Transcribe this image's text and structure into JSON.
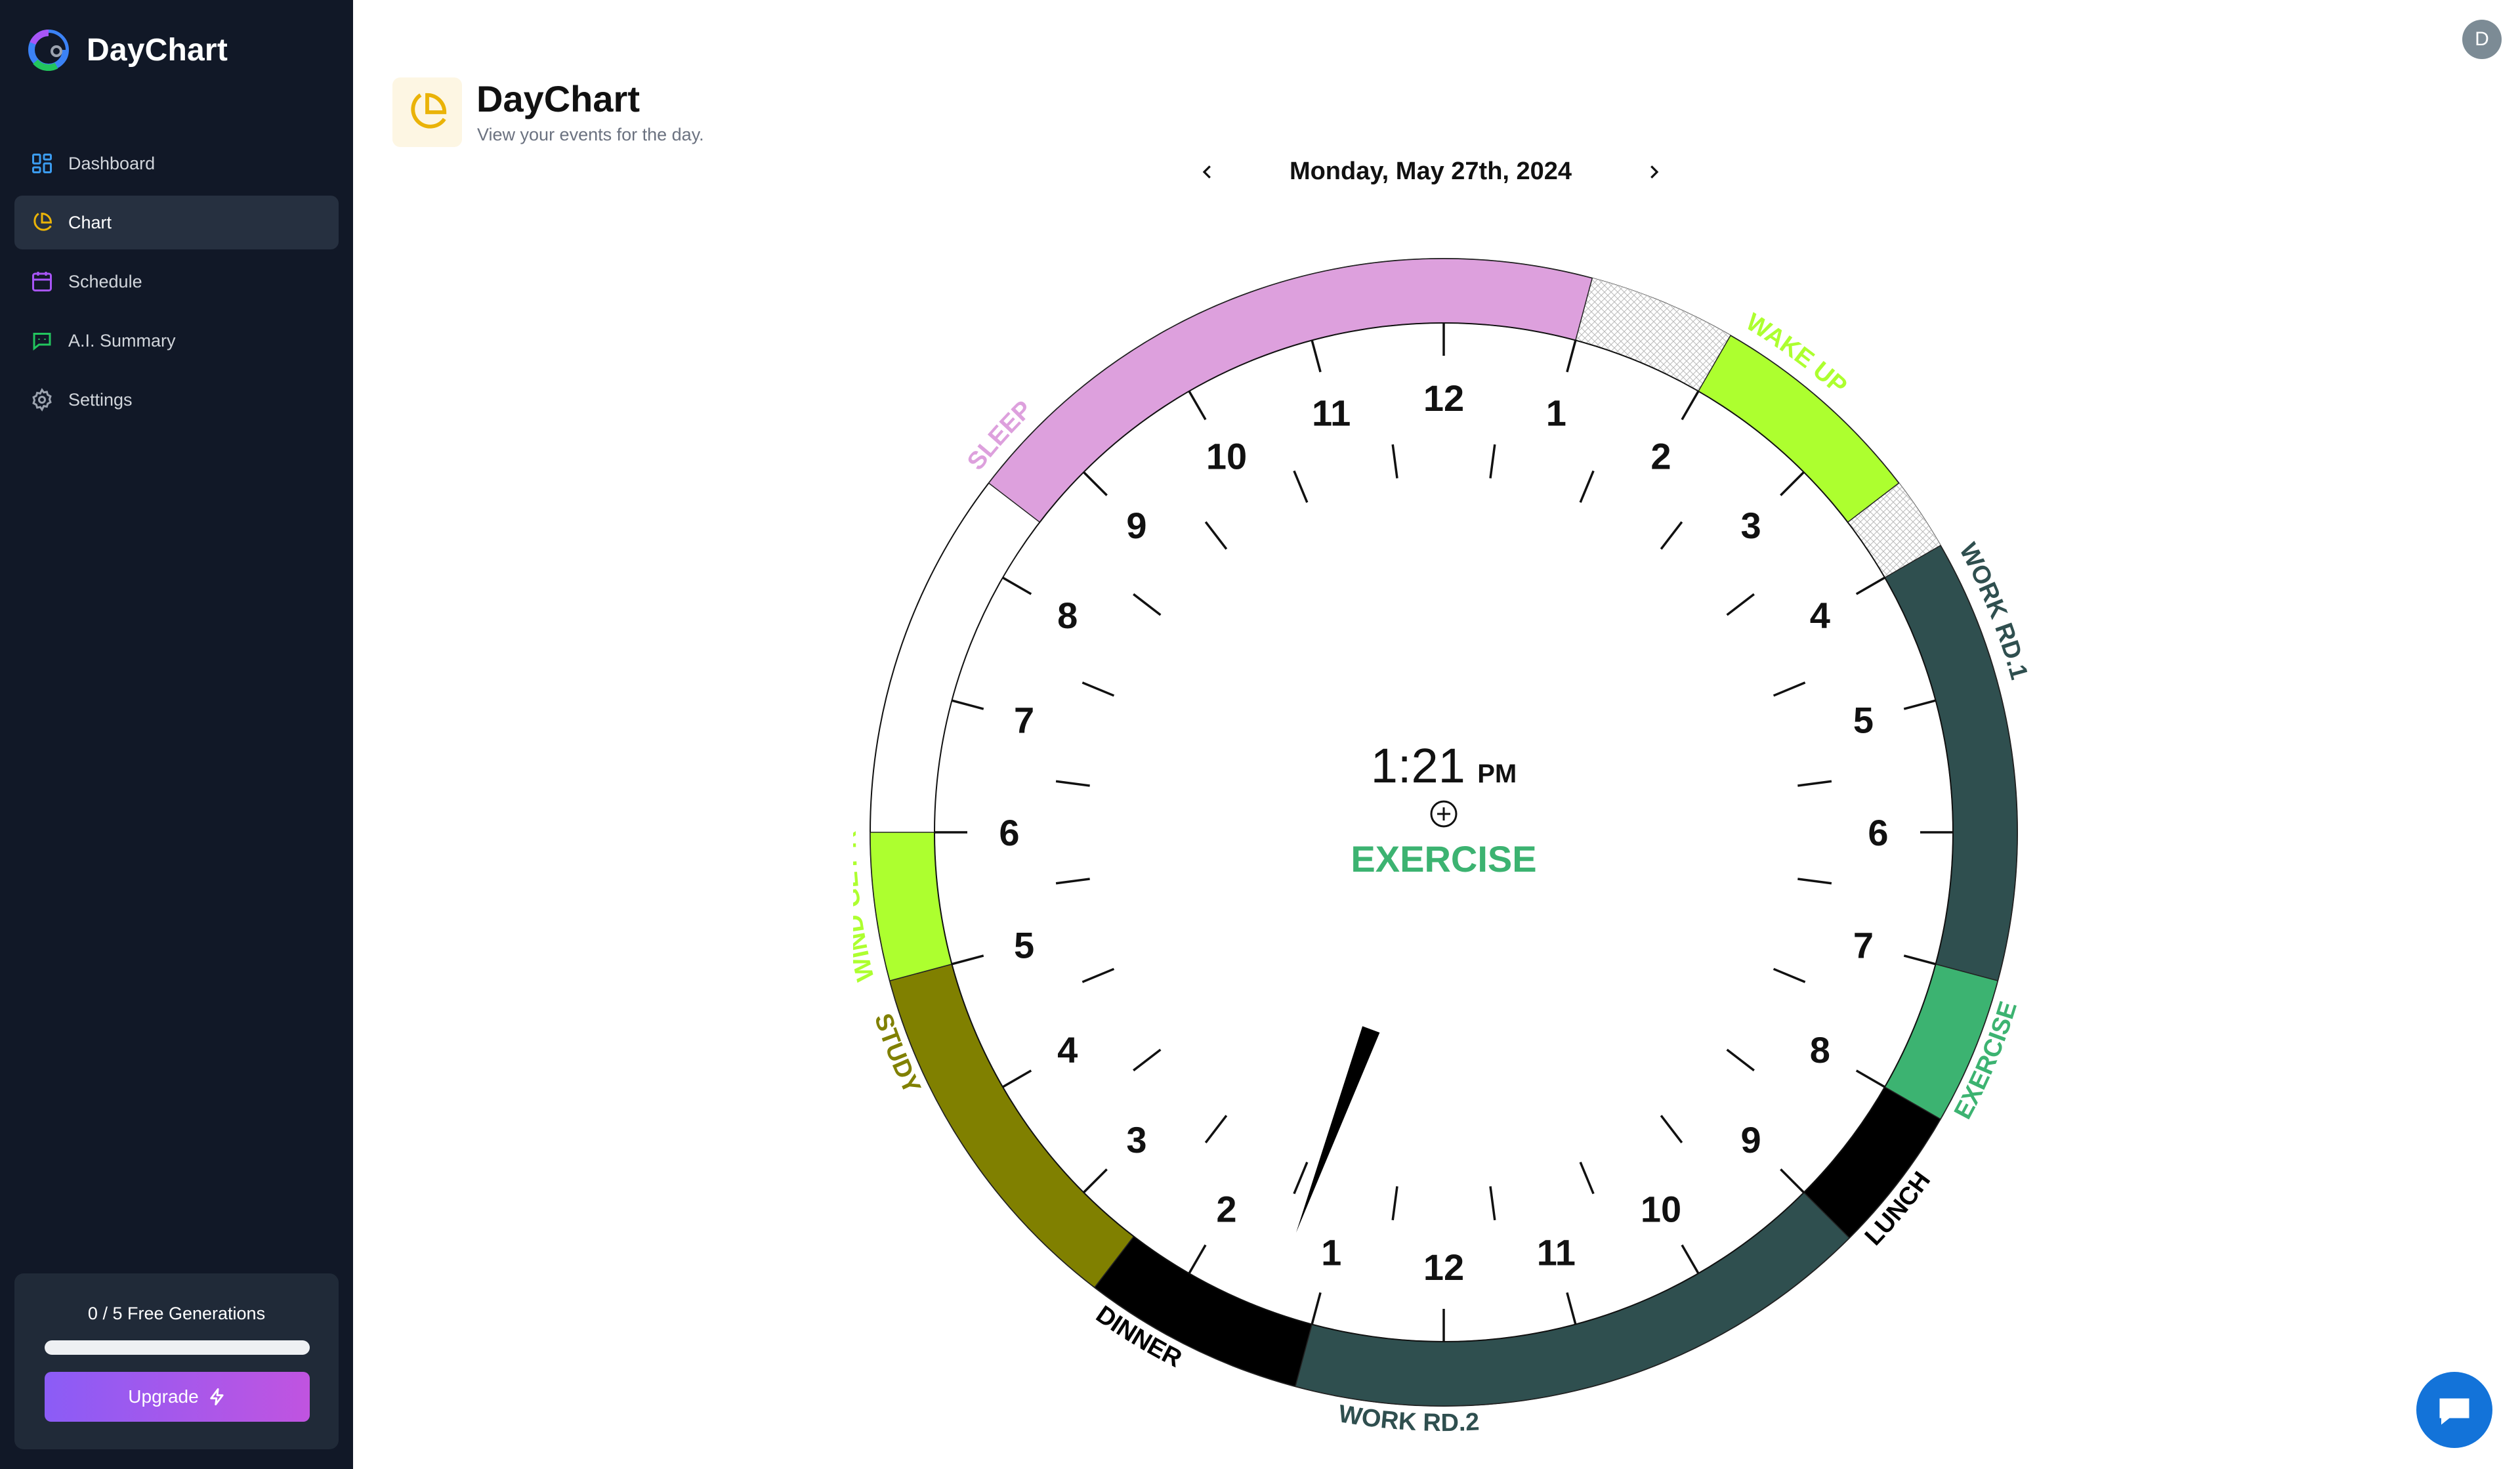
{
  "app": {
    "name": "DayChart"
  },
  "sidebar": {
    "items": [
      {
        "label": "Dashboard",
        "icon": "dashboard-icon",
        "color": "#3b9cf0",
        "active": false
      },
      {
        "label": "Chart",
        "icon": "pie-chart-icon",
        "color": "#eab308",
        "active": true
      },
      {
        "label": "Schedule",
        "icon": "calendar-icon",
        "color": "#a855f7",
        "active": false
      },
      {
        "label": "A.I. Summary",
        "icon": "bot-icon",
        "color": "#22c55e",
        "active": false
      },
      {
        "label": "Settings",
        "icon": "gear-icon",
        "color": "#9ca3af",
        "active": false
      }
    ],
    "generations": {
      "text": "0 / 5 Free Generations",
      "used": 0,
      "total": 5
    },
    "upgrade_label": "Upgrade"
  },
  "header": {
    "avatar_initial": "D",
    "title": "DayChart",
    "subtitle": "View your events for the day.",
    "date": "Monday, May 27th, 2024"
  },
  "clock": {
    "time": "1:21",
    "ampm": "PM",
    "current_event": "EXERCISE",
    "current_event_color": "#3cb371",
    "hand_minutes": 801,
    "hour_labels": [
      "12",
      "1",
      "2",
      "3",
      "4",
      "5",
      "6",
      "7",
      "8",
      "9",
      "10",
      "11",
      "12",
      "1",
      "2",
      "3",
      "4",
      "5",
      "6",
      "7",
      "8",
      "9",
      "10",
      "11"
    ]
  },
  "events": [
    {
      "name": "SLEEP",
      "label": "SLEEP",
      "start": -210,
      "end": 60,
      "color": "#dda0dd",
      "text_color": "#dda0dd"
    },
    {
      "name": "WAKE UP",
      "label": "WAKE UP",
      "start": 120,
      "end": 210,
      "color": "#adff2f",
      "text_color": "#adff2f"
    },
    {
      "name": "WORK RD.1",
      "label": "WORK RD.1",
      "start": 240,
      "end": 420,
      "color": "#2f4f4f",
      "text_color": "#2f4f4f"
    },
    {
      "name": "EXERCISE",
      "label": "EXERCISE",
      "start": 420,
      "end": 480,
      "color": "#3cb371",
      "text_color": "#3cb371"
    },
    {
      "name": "LUNCH",
      "label": "LUNCH",
      "start": 480,
      "end": 540,
      "color": "#000000",
      "text_color": "#000000"
    },
    {
      "name": "WORK RD.2",
      "label": "WORK RD.2",
      "start": 540,
      "end": 780,
      "color": "#2f4f4f",
      "text_color": "#2f4f4f"
    },
    {
      "name": "DINNER",
      "label": "DINNER",
      "start": 780,
      "end": 870,
      "color": "#000000",
      "text_color": "#000000"
    },
    {
      "name": "STUDY",
      "label": "STUDY",
      "start": 870,
      "end": 1020,
      "color": "#808000",
      "text_color": "#808000"
    },
    {
      "name": "WIND GET R",
      "label": "WIND GET R",
      "start": 1020,
      "end": 1080,
      "color": "#adff2f",
      "text_color": "#adff2f"
    }
  ],
  "gaps": [
    {
      "start": 60,
      "end": 120
    },
    {
      "start": 210,
      "end": 240
    }
  ]
}
